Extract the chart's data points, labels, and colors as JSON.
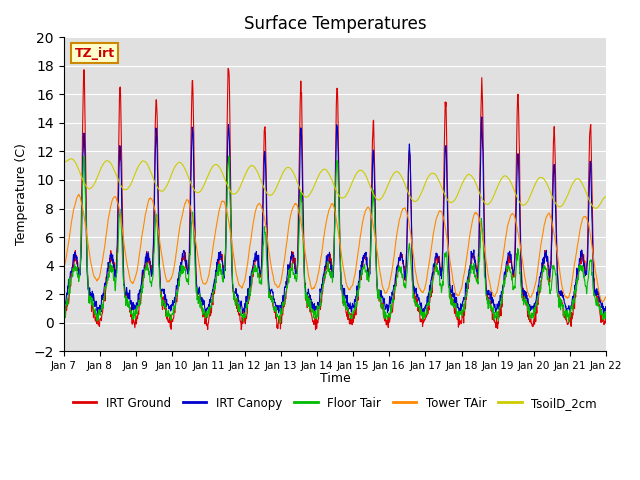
{
  "title": "Surface Temperatures",
  "xlabel": "Time",
  "ylabel": "Temperature (C)",
  "ylim": [
    -2,
    20
  ],
  "annotation": "TZ_irt",
  "annotation_color": "#cc0000",
  "annotation_bg": "#ffffcc",
  "annotation_border": "#cc8800",
  "bg_color": "#e0e0e0",
  "legend": [
    "IRT Ground",
    "IRT Canopy",
    "Floor Tair",
    "Tower TAir",
    "TsoilD_2cm"
  ],
  "line_colors": [
    "#dd0000",
    "#0000cc",
    "#00bb00",
    "#ff8800",
    "#cccc00"
  ],
  "xtick_labels": [
    "Jan 7",
    "Jan 8",
    "Jan 9",
    "Jan 10",
    "Jan 11",
    "Jan 12",
    "Jan 13",
    "Jan 14",
    "Jan 15",
    "Jan 16",
    "Jan 17",
    "Jan 18",
    "Jan 19",
    "Jan 20",
    "Jan 21",
    "Jan 22"
  ],
  "grid_color": "#ffffff",
  "title_fontsize": 12,
  "figsize": [
    6.4,
    4.8
  ],
  "dpi": 100
}
